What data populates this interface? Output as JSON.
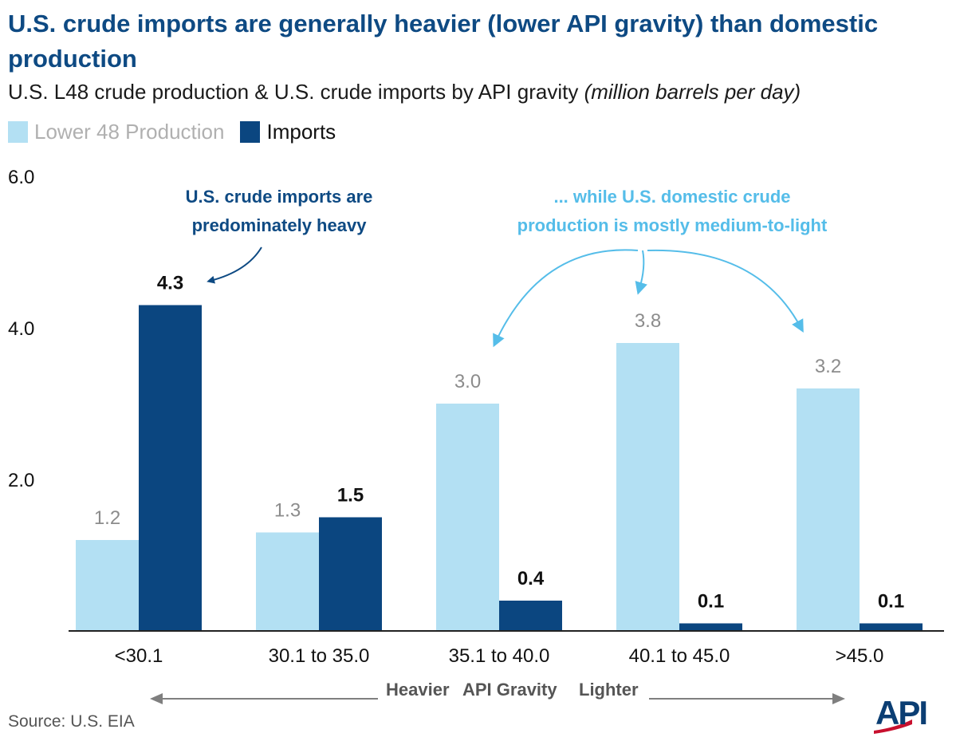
{
  "title": "U.S. crude imports are generally heavier (lower API gravity) than domestic production",
  "subtitle": "U.S. L48 crude production & U.S. crude imports by API gravity",
  "subtitle_unit": "(million barrels per day)",
  "colors": {
    "production": "#b3e0f3",
    "imports": "#0b4680",
    "annotation_dark": "#0e4a83",
    "annotation_light": "#55bde9"
  },
  "chart_data": {
    "type": "bar",
    "categories": [
      "<30.1",
      "30.1 to 35.0",
      "35.1 to 40.0",
      "40.1 to 45.0",
      ">45.0"
    ],
    "series": [
      {
        "name": "Lower 48 Production",
        "values": [
          1.2,
          1.3,
          3.0,
          3.8,
          3.2
        ],
        "labels": [
          "1.2",
          "1.3",
          "3.0",
          "3.8",
          "3.2"
        ]
      },
      {
        "name": "Imports",
        "values": [
          4.3,
          1.5,
          0.4,
          0.1,
          0.1
        ],
        "labels": [
          "4.3",
          "1.5",
          "0.4",
          "0.1",
          "0.1"
        ]
      }
    ],
    "yticks": [
      "6.0",
      "4.0",
      "2.0"
    ],
    "ylim": [
      0,
      6
    ],
    "annotations": {
      "imports": [
        "U.S. crude imports are",
        "predominately heavy"
      ],
      "production": [
        "... while U.S. domestic crude",
        "production is mostly medium-to-light"
      ]
    },
    "axis_caption": {
      "heavier": "Heavier",
      "middle": "API Gravity",
      "lighter": "Lighter"
    }
  },
  "source": "Source: U.S. EIA",
  "logo_text": "API"
}
